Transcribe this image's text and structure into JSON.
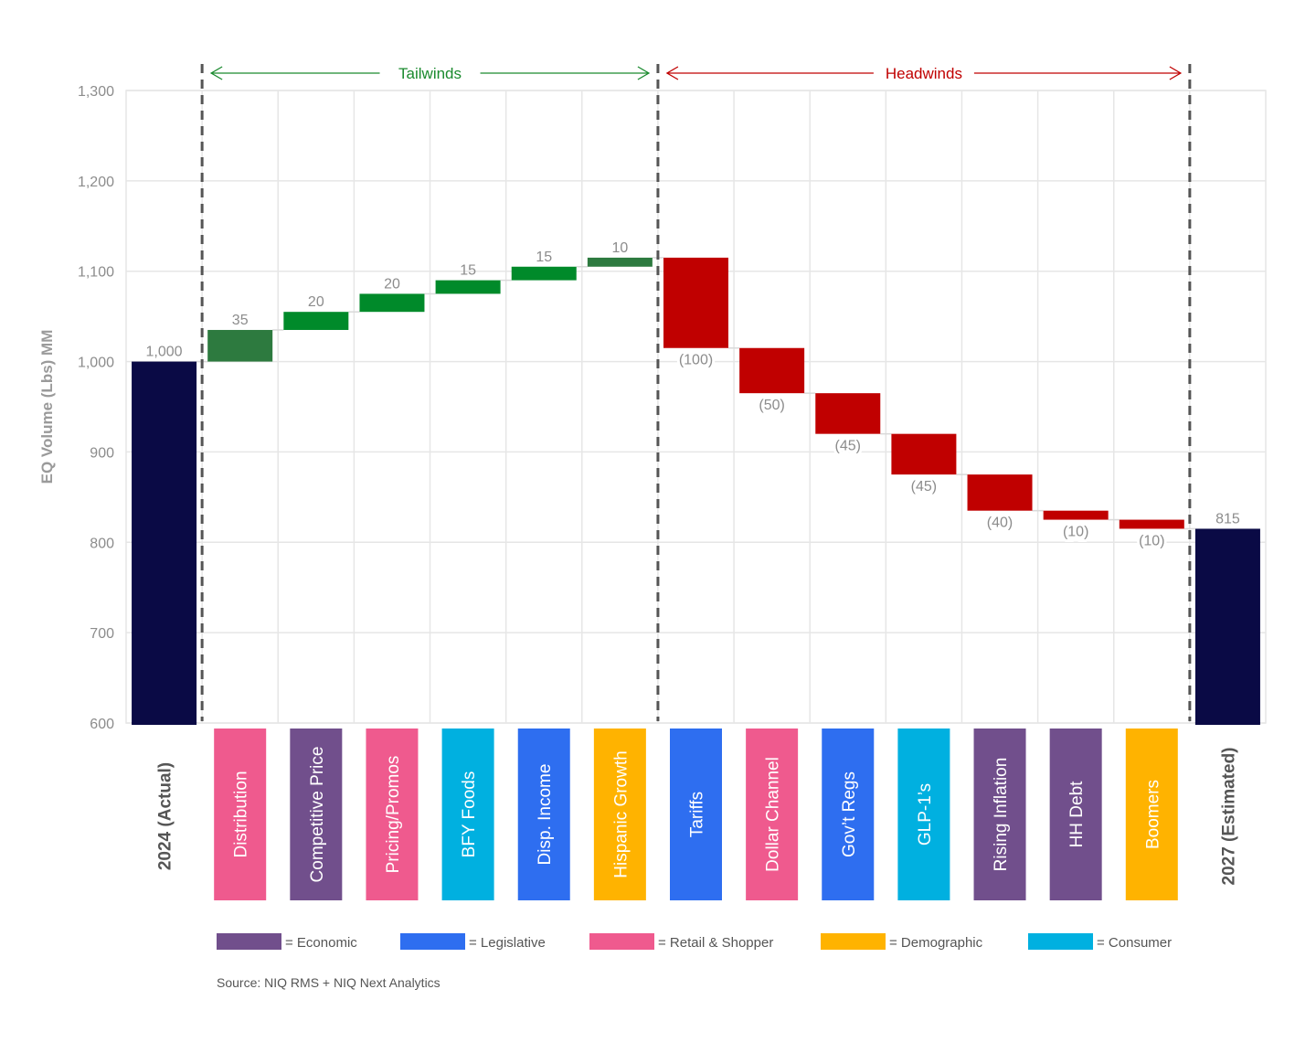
{
  "chart_data": {
    "type": "waterfall",
    "ylabel": "EQ Volume (Lbs) MM",
    "ylim": [
      600,
      1300
    ],
    "yticks": [
      600,
      700,
      800,
      900,
      1000,
      1100,
      1200,
      1300
    ],
    "ytick_labels": [
      "600",
      "700",
      "800",
      "900",
      "1,000",
      "1,100",
      "1,200",
      "1,300"
    ],
    "grid": true,
    "colors": {
      "total": "#0a0a45",
      "increase_dark": "#2d7a3f",
      "increase": "#008a2a",
      "decrease": "#c00000",
      "tailwinds": "#1a8a2e",
      "headwinds": "#c00000",
      "divider": "#555555"
    },
    "sections": [
      {
        "label": "Tailwinds",
        "color": "#1a8a2e",
        "from_category": 1,
        "to_category": 6
      },
      {
        "label": "Headwinds",
        "color": "#c00000",
        "from_category": 7,
        "to_category": 13
      }
    ],
    "bars": [
      {
        "category": "2024 (Actual)",
        "kind": "total",
        "value": 1000,
        "label": "1,000",
        "group": null
      },
      {
        "category": "Distribution",
        "kind": "increase",
        "value": 35,
        "label": "35",
        "group": "Retail & Shopper",
        "shade": "dark"
      },
      {
        "category": "Competitive Price",
        "kind": "increase",
        "value": 20,
        "label": "20",
        "group": "Economic",
        "shade": "bright"
      },
      {
        "category": "Pricing/Promos",
        "kind": "increase",
        "value": 20,
        "label": "20",
        "group": "Retail & Shopper",
        "shade": "bright"
      },
      {
        "category": "BFY Foods",
        "kind": "increase",
        "value": 15,
        "label": "15",
        "group": "Consumer",
        "shade": "bright"
      },
      {
        "category": "Disp. Income",
        "kind": "increase",
        "value": 15,
        "label": "15",
        "group": "Legislative",
        "shade": "bright"
      },
      {
        "category": "Hispanic Growth",
        "kind": "increase",
        "value": 10,
        "label": "10",
        "group": "Demographic",
        "shade": "dark"
      },
      {
        "category": "Tariffs",
        "kind": "decrease",
        "value": -100,
        "label": "(100)",
        "group": "Legislative"
      },
      {
        "category": "Dollar Channel",
        "kind": "decrease",
        "value": -50,
        "label": "(50)",
        "group": "Retail & Shopper"
      },
      {
        "category": "Gov’t Regs",
        "kind": "decrease",
        "value": -45,
        "label": "(45)",
        "group": "Legislative"
      },
      {
        "category": "GLP-1’s",
        "kind": "decrease",
        "value": -45,
        "label": "(45)",
        "group": "Consumer"
      },
      {
        "category": "Rising Inflation",
        "kind": "decrease",
        "value": -40,
        "label": "(40)",
        "group": "Economic"
      },
      {
        "category": "HH Debt",
        "kind": "decrease",
        "value": -10,
        "label": "(10)",
        "group": "Economic"
      },
      {
        "category": "Boomers",
        "kind": "decrease",
        "value": -10,
        "label": "(10)",
        "group": "Demographic"
      },
      {
        "category": "2027 (Estimated)",
        "kind": "total",
        "value": 815,
        "label": "815",
        "group": null
      }
    ],
    "legend": {
      "placement": "bottom",
      "entries": [
        {
          "label": "= Economic",
          "group": "Economic",
          "color": "#714f8c"
        },
        {
          "label": "= Legislative",
          "group": "Legislative",
          "color": "#2e6ef0"
        },
        {
          "label": "= Retail & Shopper",
          "group": "Retail & Shopper",
          "color": "#ef5a8e"
        },
        {
          "label": "= Demographic",
          "group": "Demographic",
          "color": "#ffb300"
        },
        {
          "label": "= Consumer",
          "group": "Consumer",
          "color": "#00b0e0"
        }
      ]
    },
    "source": "Source: NIQ RMS + NIQ Next Analytics"
  }
}
